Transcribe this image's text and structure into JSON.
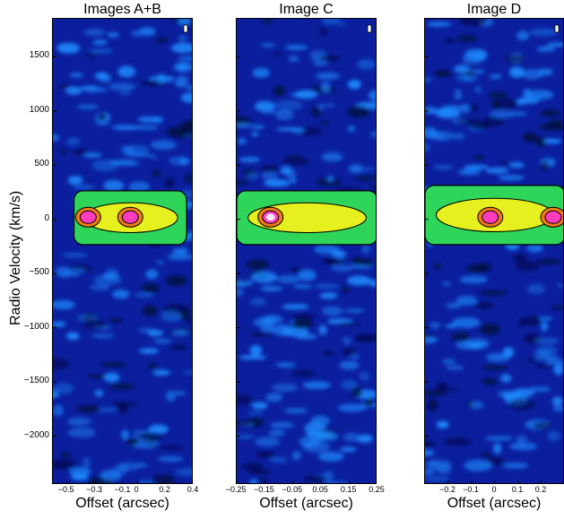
{
  "chart_data": {
    "type": "heatmap",
    "ylabel": "Radio Velocity (km/s)",
    "ylim": [
      -2450,
      1850
    ],
    "yticks": [
      1500,
      1000,
      500,
      0,
      -500,
      -1000,
      -1500,
      -2000
    ],
    "ytick_labels": [
      "1500",
      "1000",
      "500",
      "0",
      "−500",
      "−1000",
      "−1500",
      "−2000"
    ],
    "colors": {
      "background": "#0b1f9e",
      "noise_light": "#1e8cff",
      "emission_green": "#2fd45a",
      "emission_yellow": "#e6f01e",
      "emission_orange": "#f07a1a",
      "emission_red": "#e8144a",
      "emission_magenta": "#ff3cbe",
      "emission_white": "#f6e8ff",
      "contour": "#000000"
    },
    "panels": [
      {
        "title": "Images A+B",
        "xlabel": "Offset (arcsec)",
        "xlim": [
          -0.6,
          0.4
        ],
        "xticks": [
          -0.5,
          -0.3,
          -0.1,
          0,
          0.2,
          0.4
        ],
        "xtick_labels": [
          "−0.5",
          "−0.3",
          "−0.1",
          "0",
          "0.2",
          "0.4"
        ],
        "emission_velocity_range": [
          -200,
          230
        ],
        "emission_offset_range": [
          -0.45,
          0.35
        ],
        "peak_offsets": [
          -0.35,
          -0.05
        ]
      },
      {
        "title": "Image C",
        "xlabel": "Offset (arcsec)",
        "xlim": [
          -0.25,
          0.25
        ],
        "xticks": [
          -0.25,
          -0.15,
          -0.05,
          0.05,
          0.15,
          0.25
        ],
        "xtick_labels": [
          "−0.25",
          "−0.15",
          "−0.05",
          "0.05",
          "0.15",
          "0.25"
        ],
        "emission_velocity_range": [
          -200,
          230
        ],
        "emission_offset_range": [
          -0.25,
          0.25
        ],
        "peak_offsets": [
          -0.13
        ]
      },
      {
        "title": "Image D",
        "xlabel": "Offset (arcsec)",
        "xlim": [
          -0.3,
          0.3
        ],
        "xticks": [
          -0.2,
          -0.1,
          0,
          0.1,
          0.2
        ],
        "xtick_labels": [
          "−0.2",
          "−0.1",
          "0",
          "0.1",
          "0.2"
        ],
        "emission_velocity_range": [
          -200,
          280
        ],
        "emission_offset_range": [
          -0.3,
          0.3
        ],
        "peak_offsets": [
          -0.02,
          0.25
        ]
      }
    ]
  }
}
